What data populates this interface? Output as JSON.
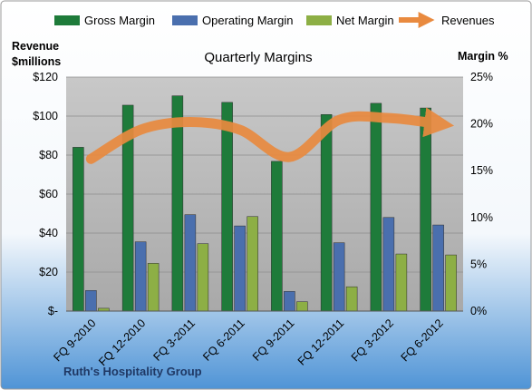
{
  "chart_data": {
    "type": "bar",
    "title": "Quarterly Margins",
    "footer": "Ruth's Hospitality Group",
    "categories": [
      "FQ 9-2010",
      "FQ 12-2010",
      "FQ 3-2011",
      "FQ 6-2011",
      "FQ 9-2011",
      "FQ 12-2011",
      "FQ 3-2012",
      "FQ 6-2012"
    ],
    "y_left": {
      "label_line1": "Revenue",
      "label_line2": "$millions",
      "range": [
        0,
        120
      ],
      "ticks": [
        0,
        20,
        40,
        60,
        80,
        100,
        120
      ],
      "tick_labels": [
        "$-",
        "$20",
        "$40",
        "$60",
        "$80",
        "$100",
        "$120"
      ]
    },
    "y_right": {
      "label": "Margin %",
      "range": [
        0,
        25
      ],
      "ticks": [
        0,
        5,
        10,
        15,
        20,
        25
      ],
      "tick_labels": [
        "0%",
        "5%",
        "10%",
        "15%",
        "20%",
        "25%"
      ]
    },
    "series": [
      {
        "name": "Gross Margin",
        "axis": "right",
        "type": "bar",
        "color": "#1e7b3a",
        "values": [
          17.5,
          22.0,
          23.0,
          22.3,
          16.0,
          21.0,
          22.2,
          21.7
        ]
      },
      {
        "name": "Operating Margin",
        "axis": "right",
        "type": "bar",
        "color": "#4a6fae",
        "values": [
          2.2,
          7.4,
          10.3,
          9.1,
          2.1,
          7.3,
          10.0,
          9.2
        ]
      },
      {
        "name": "Net Margin",
        "axis": "right",
        "type": "bar",
        "color": "#8daf45",
        "values": [
          0.3,
          5.1,
          7.2,
          10.1,
          1.0,
          2.6,
          6.1,
          6.0
        ]
      },
      {
        "name": "Revenues",
        "axis": "left",
        "type": "line",
        "color": "#e98a3f",
        "values": [
          78,
          93,
          97,
          93,
          79,
          98,
          99,
          96
        ]
      }
    ],
    "legend_position": "top",
    "grid": true
  }
}
